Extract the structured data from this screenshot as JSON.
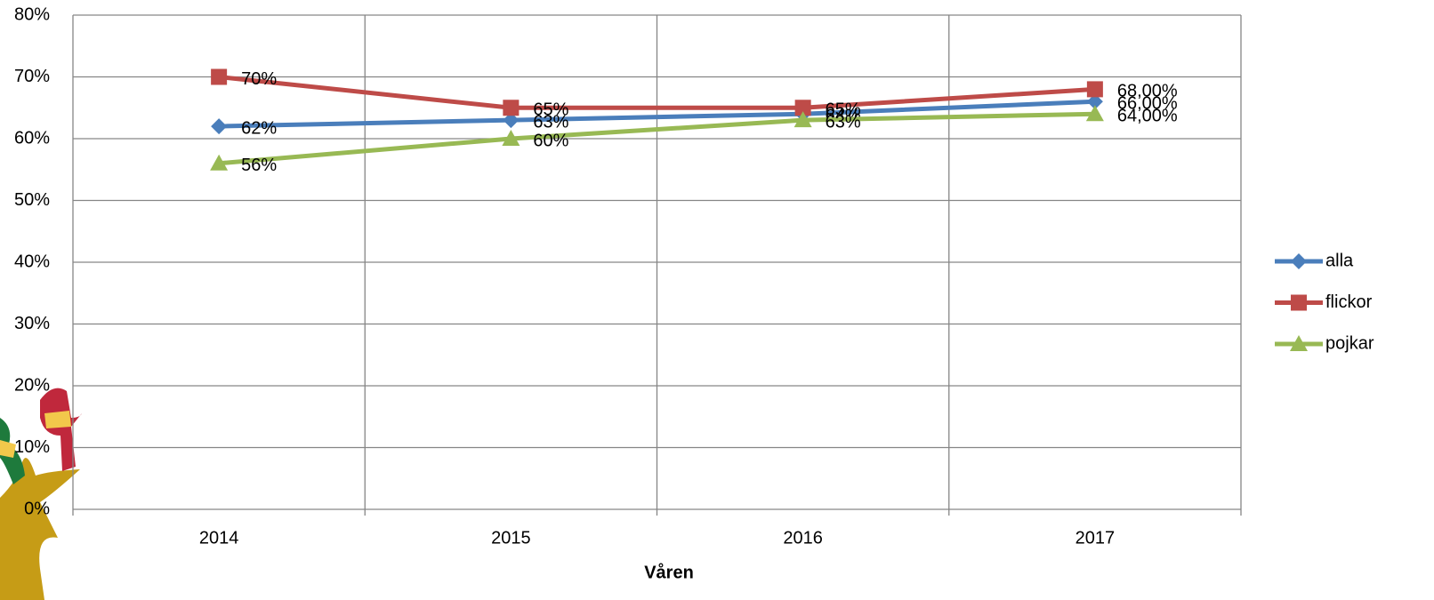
{
  "chart_data": {
    "type": "line",
    "x_label": "Våren",
    "categories": [
      "2014",
      "2015",
      "2016",
      "2017"
    ],
    "series": [
      {
        "name": "alla",
        "color": "#4a7ebb",
        "marker": "diamond",
        "values": [
          62,
          63,
          64,
          66
        ],
        "value_labels": [
          "62%",
          "63%",
          "64%",
          "66,00%"
        ]
      },
      {
        "name": "flickor",
        "color": "#be4b48",
        "marker": "square",
        "values": [
          70,
          65,
          65,
          68
        ],
        "value_labels": [
          "70%",
          "65%",
          "65%",
          "68,00%"
        ]
      },
      {
        "name": "pojkar",
        "color": "#98b954",
        "marker": "triangle",
        "values": [
          56,
          60,
          63,
          64
        ],
        "value_labels": [
          "56%",
          "60%",
          "63%",
          "64,00%"
        ]
      }
    ],
    "ylim": [
      0,
      80
    ],
    "yticks": [
      {
        "value": 0,
        "label": "0%"
      },
      {
        "value": 10,
        "label": "10%"
      },
      {
        "value": 20,
        "label": "20%"
      },
      {
        "value": 30,
        "label": "30%"
      },
      {
        "value": 40,
        "label": "40%"
      },
      {
        "value": 50,
        "label": "50%"
      },
      {
        "value": 60,
        "label": "60%"
      },
      {
        "value": 70,
        "label": "70%"
      },
      {
        "value": 80,
        "label": "80%"
      }
    ],
    "grid": true,
    "legend": "right"
  }
}
